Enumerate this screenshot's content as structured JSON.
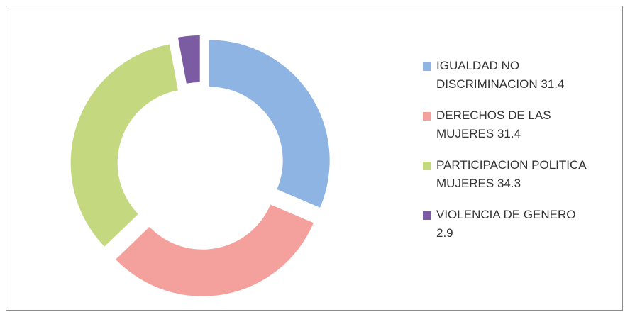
{
  "chart_data": {
    "type": "donut",
    "categories": [
      "IGUALDAD NO DISCRIMINACION",
      "DERECHOS DE LAS MUJERES",
      "PARTICIPACION POLITICA MUJERES",
      "VIOLENCIA DE GENERO"
    ],
    "values": [
      31.4,
      31.4,
      34.3,
      2.9
    ],
    "colors": [
      "#8eb4e3",
      "#f4a19e",
      "#c4d97f",
      "#7b5ba1"
    ],
    "legend": "right"
  }
}
